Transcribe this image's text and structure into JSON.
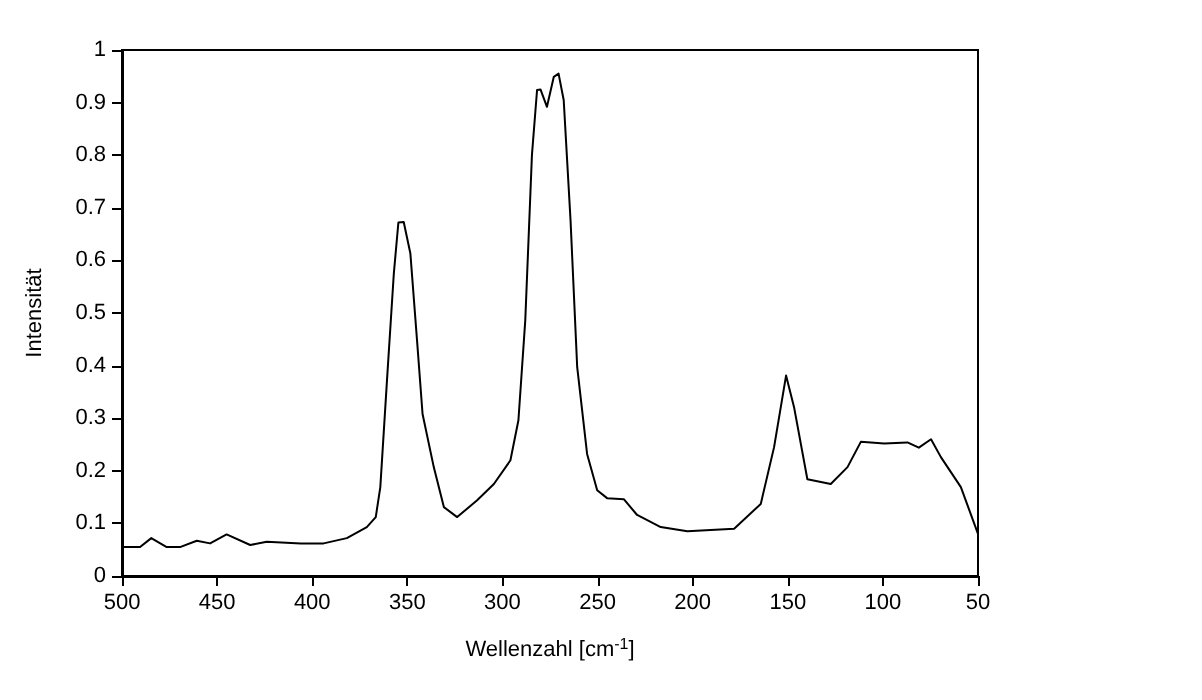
{
  "chart_data": {
    "type": "line",
    "xlabel": "Wellenzahl [cm$^{-1}$]",
    "ylabel": "Intensität",
    "xlim": [
      500,
      50
    ],
    "ylim": [
      0,
      1
    ],
    "xticks": [
      500,
      450,
      400,
      350,
      300,
      250,
      200,
      150,
      100,
      50
    ],
    "yticks": [
      0,
      0.1,
      0.2,
      0.3,
      0.4,
      0.5,
      0.6,
      0.7,
      0.8,
      0.9,
      1
    ],
    "grid": false,
    "marker": "none",
    "line_style": "solid",
    "series": [
      {
        "color": "#000000",
        "x": [
          500,
          490.5,
          484.6,
          476.5,
          469.5,
          460.7,
          453.7,
          445,
          432.6,
          423.9,
          406,
          394,
          381.8,
          371.3,
          366.6,
          364.2,
          360.7,
          357.1,
          354.7,
          351.9,
          348.4,
          344.9,
          342,
          336.1,
          330.8,
          323.8,
          313.3,
          304.5,
          295.8,
          291.6,
          288,
          284.5,
          281.8,
          280,
          276.6,
          273,
          270.5,
          267.8,
          264.2,
          260.7,
          255.5,
          250.2,
          245,
          236.2,
          229.2,
          216.8,
          202.8,
          178.2,
          164.2,
          157.2,
          150.9,
          146.7,
          139.7,
          127.4,
          118.6,
          111.6,
          99.3,
          87.1,
          81.1,
          74.7,
          69.5,
          59,
          50
        ],
        "values": [
          0.055,
          0.055,
          0.072,
          0.055,
          0.055,
          0.067,
          0.062,
          0.079,
          0.059,
          0.065,
          0.062,
          0.062,
          0.072,
          0.093,
          0.112,
          0.169,
          0.372,
          0.575,
          0.672,
          0.673,
          0.613,
          0.448,
          0.308,
          0.207,
          0.131,
          0.112,
          0.144,
          0.175,
          0.22,
          0.296,
          0.486,
          0.8,
          0.924,
          0.925,
          0.892,
          0.949,
          0.955,
          0.905,
          0.676,
          0.397,
          0.232,
          0.163,
          0.148,
          0.146,
          0.116,
          0.093,
          0.085,
          0.09,
          0.137,
          0.245,
          0.381,
          0.321,
          0.184,
          0.175,
          0.207,
          0.255,
          0.252,
          0.254,
          0.244,
          0.26,
          0.226,
          0.169,
          0.08
        ]
      }
    ]
  }
}
